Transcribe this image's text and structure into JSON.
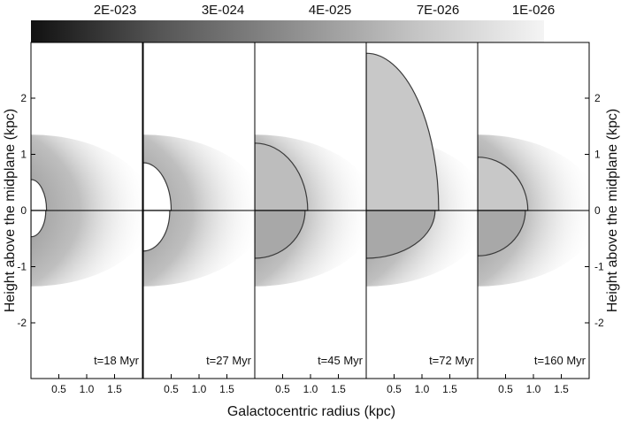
{
  "chart_data": {
    "type": "heatmap",
    "colorbar": {
      "tick_labels": [
        "2E-023",
        "3E-024",
        "4E-025",
        "7E-026",
        "1E-026"
      ],
      "colormap": "grayscale",
      "color_low_density": "#f2f2f2",
      "color_high_density": "#111111"
    },
    "xlabel": "Galactocentric radius (kpc)",
    "ylabel": "Height above the midplane (kpc)",
    "x_ticks": [
      "0.5",
      "1.0",
      "1.5"
    ],
    "y_ticks": [
      "2",
      "1",
      "0",
      "-1",
      "-2"
    ],
    "xlim": [
      0,
      2
    ],
    "ylim": [
      -3,
      3
    ],
    "panels": [
      {
        "time": "t=18 Myr",
        "shell_radius_kpc": 0.28,
        "shell_height_kpc": 0.55
      },
      {
        "time": "t=27 Myr",
        "shell_radius_kpc": 0.5,
        "shell_height_kpc": 0.85
      },
      {
        "time": "t=45 Myr",
        "shell_radius_kpc": 0.95,
        "shell_height_kpc": 1.2
      },
      {
        "time": "t=72 Myr",
        "shell_radius_kpc": 1.3,
        "shell_height_kpc": 2.8
      },
      {
        "time": "t=160 Myr",
        "shell_radius_kpc": 0.9,
        "shell_height_kpc": 0.95
      }
    ]
  }
}
